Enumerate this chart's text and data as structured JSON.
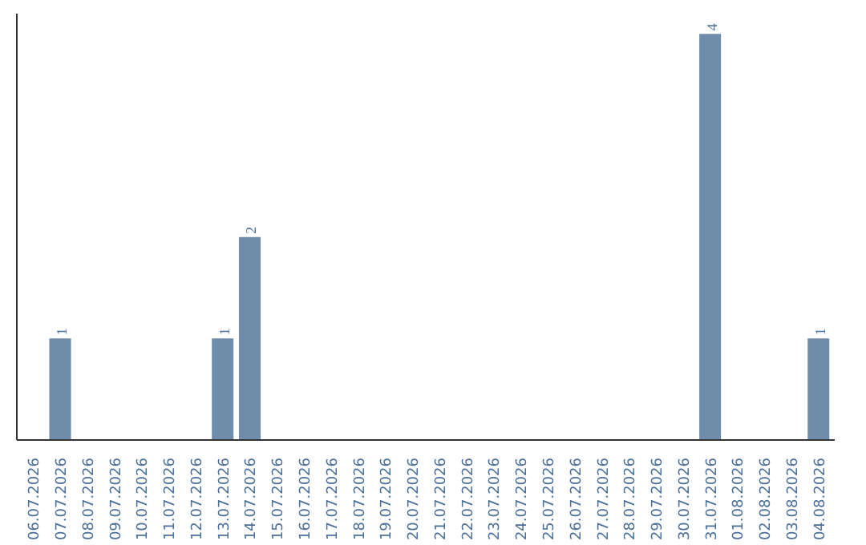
{
  "chart_data": {
    "type": "bar",
    "categories": [
      "06.07.2026",
      "07.07.2026",
      "08.07.2026",
      "09.07.2026",
      "10.07.2026",
      "11.07.2026",
      "12.07.2026",
      "13.07.2026",
      "14.07.2026",
      "15.07.2026",
      "16.07.2026",
      "17.07.2026",
      "18.07.2026",
      "19.07.2026",
      "20.07.2026",
      "21.07.2026",
      "22.07.2026",
      "23.07.2026",
      "24.07.2026",
      "25.07.2026",
      "26.07.2026",
      "27.07.2026",
      "28.07.2026",
      "29.07.2026",
      "30.07.2026",
      "31.07.2026",
      "01.08.2026",
      "02.08.2026",
      "03.08.2026",
      "04.08.2026"
    ],
    "values": [
      0,
      1,
      0,
      0,
      0,
      0,
      0,
      1,
      2,
      0,
      0,
      0,
      0,
      0,
      0,
      0,
      0,
      0,
      0,
      0,
      0,
      0,
      0,
      0,
      0,
      4,
      0,
      0,
      0,
      1
    ],
    "color": "#6f8dab",
    "value_labels": [
      null,
      "1",
      null,
      null,
      null,
      null,
      null,
      "1",
      "2",
      null,
      null,
      null,
      null,
      null,
      null,
      null,
      null,
      null,
      null,
      null,
      null,
      null,
      null,
      null,
      null,
      "4",
      null,
      null,
      null,
      "1"
    ],
    "grid": false
  }
}
